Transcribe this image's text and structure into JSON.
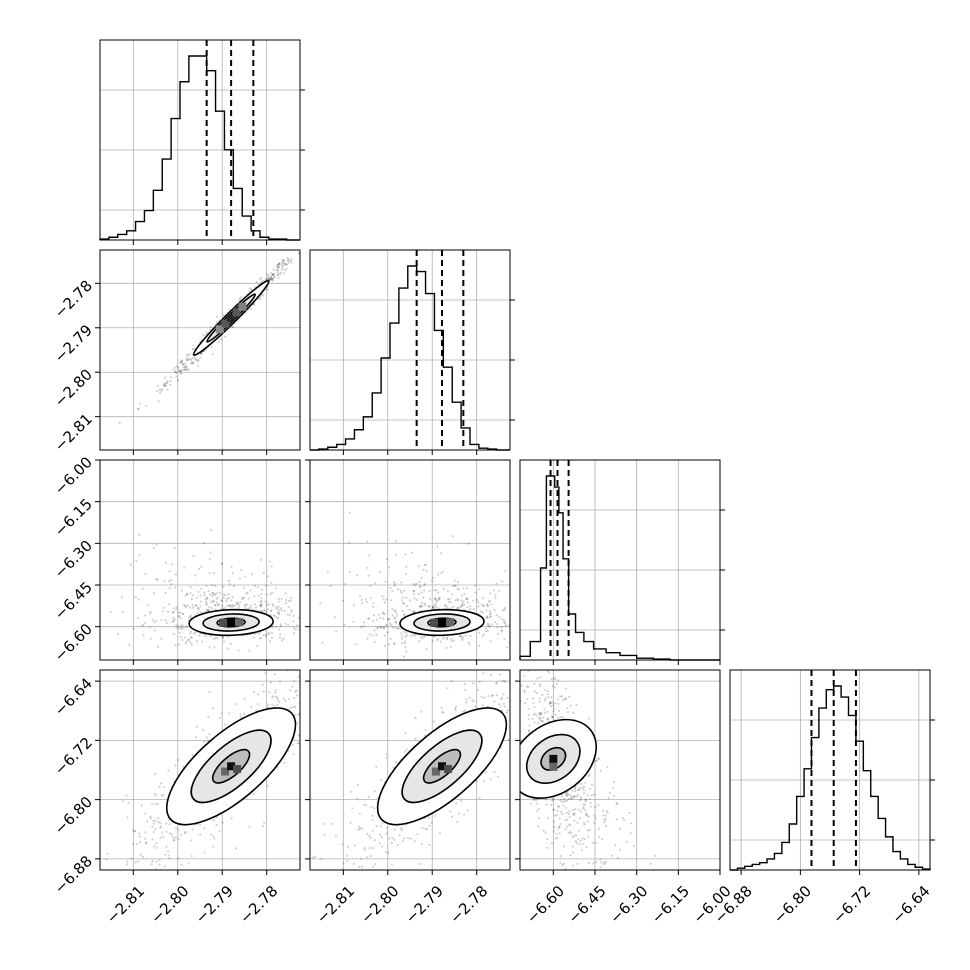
{
  "chart_data": {
    "type": "corner",
    "n_params": 4,
    "params": [
      {
        "range": [
          -2.8175,
          -2.7725
        ],
        "ticks": [
          -2.81,
          -2.8,
          -2.79,
          -2.78
        ],
        "ticklabels": [
          "−2.81",
          "−2.80",
          "−2.79",
          "−2.78"
        ],
        "quantiles": [
          -2.7935,
          -2.788,
          -2.783
        ]
      },
      {
        "range": [
          -2.8175,
          -2.7725
        ],
        "ticks": [
          -2.81,
          -2.8,
          -2.79,
          -2.78
        ],
        "ticklabels": [
          "−2.81",
          "−2.80",
          "−2.79",
          "−2.78"
        ],
        "quantiles": [
          -2.7935,
          -2.7878,
          -2.783
        ]
      },
      {
        "range": [
          -6.72,
          -6.0
        ],
        "ticks": [
          -6.6,
          -6.45,
          -6.3,
          -6.15,
          -6.0
        ],
        "ticklabels": [
          "−6.60",
          "−6.45",
          "−6.30",
          "−6.15",
          "−6.00"
        ],
        "quantiles": [
          -6.61,
          -6.585,
          -6.545
        ]
      },
      {
        "range": [
          -6.895,
          -6.625
        ],
        "ticks": [
          -6.88,
          -6.8,
          -6.72,
          -6.64
        ],
        "ticklabels": [
          "−6.88",
          "−6.80",
          "−6.72",
          "−6.64"
        ],
        "quantiles": [
          -6.785,
          -6.755,
          -6.725
        ]
      }
    ],
    "histograms": [
      {
        "param": 0,
        "edges": [
          -2.8175,
          -2.8155,
          -2.8135,
          -2.8115,
          -2.8095,
          -2.8075,
          -2.8055,
          -2.8035,
          -2.8015,
          -2.7995,
          -2.7975,
          -2.7955,
          -2.7935,
          -2.7915,
          -2.7895,
          -2.7875,
          -2.7855,
          -2.7835,
          -2.7815,
          -2.7795,
          -2.7775,
          -2.7755,
          -2.7725
        ],
        "counts": [
          0.5,
          1.5,
          3,
          5,
          10,
          16,
          27,
          44,
          66,
          86,
          100,
          100,
          92,
          70,
          49,
          28,
          13,
          5,
          1.5,
          0.5,
          0.5,
          0
        ]
      },
      {
        "param": 1,
        "edges": [
          -2.8175,
          -2.8155,
          -2.8135,
          -2.8115,
          -2.8095,
          -2.8075,
          -2.8055,
          -2.8035,
          -2.8015,
          -2.7995,
          -2.7975,
          -2.7955,
          -2.7935,
          -2.7915,
          -2.7895,
          -2.7875,
          -2.7855,
          -2.7835,
          -2.7815,
          -2.7795,
          -2.7775,
          -2.7755,
          -2.7725
        ],
        "counts": [
          0,
          0.5,
          1.5,
          3,
          6,
          11,
          18,
          31,
          50,
          69,
          88,
          100,
          97,
          85,
          65,
          45,
          26,
          12,
          3,
          1,
          0.5,
          0
        ]
      },
      {
        "param": 2,
        "edges": [
          -6.72,
          -6.683,
          -6.646,
          -6.625,
          -6.61,
          -6.595,
          -6.58,
          -6.565,
          -6.545,
          -6.52,
          -6.49,
          -6.455,
          -6.41,
          -6.36,
          -6.3,
          -6.24,
          -6.18,
          -6.12,
          -6.06,
          -6.0
        ],
        "counts": [
          2,
          10,
          50,
          100,
          100,
          94,
          80,
          55,
          25,
          15,
          10,
          6,
          4,
          2.5,
          1,
          0.5,
          0,
          0,
          0
        ]
      },
      {
        "param": 3,
        "edges": [
          -6.895,
          -6.885,
          -6.875,
          -6.865,
          -6.855,
          -6.845,
          -6.835,
          -6.825,
          -6.815,
          -6.805,
          -6.795,
          -6.785,
          -6.775,
          -6.765,
          -6.755,
          -6.745,
          -6.735,
          -6.725,
          -6.715,
          -6.705,
          -6.695,
          -6.685,
          -6.675,
          -6.665,
          -6.655,
          -6.645,
          -6.635,
          -6.625
        ],
        "counts": [
          0,
          1,
          2,
          3,
          4,
          6,
          9,
          15,
          25,
          40,
          55,
          72,
          88,
          98,
          100,
          94,
          84,
          70,
          54,
          40,
          28,
          18,
          10,
          6,
          3,
          1.5,
          0.5
        ]
      }
    ],
    "pairs": [
      {
        "x": 0,
        "y": 1,
        "center": [
          -2.788,
          -2.7878
        ],
        "spread": [
          0.004,
          0.004
        ],
        "corr": 0.99,
        "n_points": 700,
        "contours": [
          {
            "level": 2,
            "scale": 0.55
          },
          {
            "level": 1,
            "scale": 1.35
          },
          {
            "level": 0,
            "scale": 2.1
          }
        ],
        "density": [
          {
            "dx": -2,
            "dy": 0,
            "v": 0.45
          },
          {
            "dx": -1,
            "dy": 0,
            "v": 0.65
          },
          {
            "dx": 0,
            "dy": 0,
            "v": 0.85
          },
          {
            "dx": 1,
            "dy": 0,
            "v": 0.65
          },
          {
            "dx": 2,
            "dy": 0,
            "v": 0.5
          }
        ]
      },
      {
        "x": 0,
        "y": 2,
        "center": [
          -2.788,
          -6.585
        ],
        "spread": [
          0.0045,
          0.022
        ],
        "corr": 0.1,
        "n_points": 650,
        "tail": true,
        "contours": [
          {
            "level": 2,
            "scale": 0.7
          },
          {
            "level": 1,
            "scale": 1.4
          },
          {
            "level": 0,
            "scale": 2.1
          }
        ],
        "density": [
          {
            "dx": -1,
            "dy": 0,
            "v": 0.7
          },
          {
            "dx": 0,
            "dy": 0,
            "v": 1.0
          },
          {
            "dx": 1,
            "dy": 0,
            "v": 0.6
          }
        ]
      },
      {
        "x": 1,
        "y": 2,
        "center": [
          -2.7878,
          -6.585
        ],
        "spread": [
          0.0045,
          0.022
        ],
        "corr": 0.1,
        "n_points": 650,
        "tail": true,
        "contours": [
          {
            "level": 2,
            "scale": 0.7
          },
          {
            "level": 1,
            "scale": 1.4
          },
          {
            "level": 0,
            "scale": 2.1
          }
        ],
        "density": [
          {
            "dx": -1,
            "dy": 0,
            "v": 0.7
          },
          {
            "dx": 0,
            "dy": 0,
            "v": 1.0
          },
          {
            "dx": 1,
            "dy": 0,
            "v": 0.6
          }
        ]
      },
      {
        "x": 0,
        "y": 3,
        "center": [
          -2.788,
          -6.755
        ],
        "spread": [
          0.0065,
          0.04
        ],
        "corr": 0.85,
        "n_points": 650,
        "contours": [
          {
            "level": 2,
            "scale": 0.6
          },
          {
            "level": 1,
            "scale": 1.3
          },
          {
            "level": 0,
            "scale": 2.1
          }
        ],
        "density": [
          {
            "dx": -1,
            "dy": 0,
            "v": 0.6
          },
          {
            "dx": 0,
            "dy": 0,
            "v": 0.95
          },
          {
            "dx": 1,
            "dy": 1,
            "v": 0.7
          }
        ]
      },
      {
        "x": 1,
        "y": 3,
        "center": [
          -2.7878,
          -6.755
        ],
        "spread": [
          0.0065,
          0.04
        ],
        "corr": 0.85,
        "n_points": 650,
        "contours": [
          {
            "level": 2,
            "scale": 0.6
          },
          {
            "level": 1,
            "scale": 1.3
          },
          {
            "level": 0,
            "scale": 2.1
          }
        ],
        "density": [
          {
            "dx": -1,
            "dy": 0,
            "v": 0.6
          },
          {
            "dx": 0,
            "dy": 0,
            "v": 0.95
          },
          {
            "dx": 1,
            "dy": 1,
            "v": 0.7
          }
        ]
      },
      {
        "x": 2,
        "y": 3,
        "center": [
          -6.6,
          -6.745
        ],
        "spread": [
          0.035,
          0.035
        ],
        "corr": -0.5,
        "n_points": 650,
        "tail": true,
        "contours": [
          {
            "level": 2,
            "scale": 0.6
          },
          {
            "level": 1,
            "scale": 1.3
          },
          {
            "level": 0,
            "scale": 2.1
          }
        ],
        "density": [
          {
            "dx": 0,
            "dy": 0,
            "v": 0.95
          },
          {
            "dx": 0,
            "dy": 1,
            "v": 0.6
          }
        ]
      }
    ],
    "grid": true,
    "quantile_line_style": "dashed"
  }
}
